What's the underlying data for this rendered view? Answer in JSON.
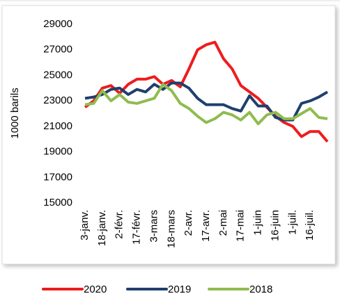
{
  "chart_data": {
    "type": "line",
    "y_label": "1000 barils",
    "categories": [
      "3-janv.",
      null,
      "18-janv.",
      null,
      "2-févr.",
      null,
      "17-févr.",
      null,
      "3-mars",
      null,
      "18-mars",
      null,
      "2-avr.",
      null,
      "17-avr.",
      null,
      "2-mai",
      null,
      "17-mai",
      null,
      "1-juin",
      null,
      "16-juin",
      null,
      "1-juil.",
      null,
      "16-juil.",
      null,
      null
    ],
    "series": [
      {
        "name": "2020",
        "color": "#ee1c1c",
        "values": [
          22500,
          23000,
          24000,
          24200,
          23600,
          24300,
          24700,
          24700,
          24900,
          24300,
          24600,
          24100,
          25500,
          27000,
          27400,
          27600,
          26300,
          25500,
          24200,
          23700,
          23200,
          22500,
          21800,
          21300,
          21000,
          20200,
          20600,
          20600,
          19800
        ]
      },
      {
        "name": "2019",
        "color": "#1f3f6e",
        "values": [
          23200,
          23300,
          23500,
          23900,
          24000,
          23500,
          23900,
          23700,
          24300,
          23900,
          24400,
          24400,
          24000,
          23200,
          22700,
          22700,
          22700,
          22400,
          22200,
          23400,
          22600,
          22600,
          21700,
          21500,
          21500,
          22800,
          23000,
          23300,
          23700
        ]
      },
      {
        "name": "2018",
        "color": "#8fbc4f",
        "values": [
          22700,
          22800,
          23800,
          23000,
          23500,
          22900,
          22800,
          23000,
          23200,
          24300,
          23800,
          22800,
          22400,
          21800,
          21300,
          21600,
          22100,
          21900,
          21500,
          22100,
          21200,
          21900,
          22100,
          21600,
          21600,
          22000,
          22400,
          21700,
          21600
        ]
      }
    ],
    "ylim": [
      15000,
      29000
    ],
    "yticks": [
      15000,
      17000,
      19000,
      21000,
      23000,
      25000,
      27000,
      29000
    ],
    "grid": false
  }
}
